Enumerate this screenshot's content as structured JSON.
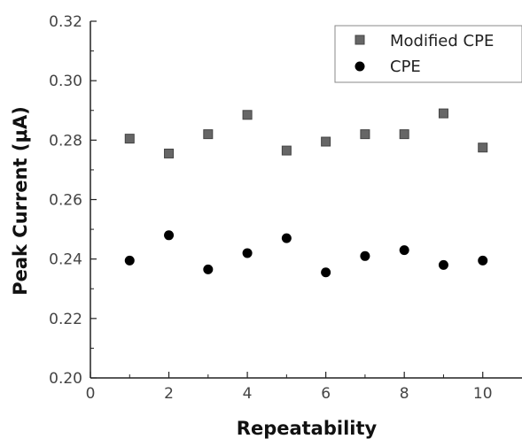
{
  "chart_data": {
    "type": "scatter",
    "xlabel": "Repeatability",
    "ylabel": "Peak Current (μA)",
    "xlim": [
      0,
      11
    ],
    "ylim": [
      0.2,
      0.32
    ],
    "x_ticks": [
      0,
      2,
      4,
      6,
      8,
      10
    ],
    "y_ticks": [
      0.2,
      0.22,
      0.24,
      0.26,
      0.28,
      0.3,
      0.32
    ],
    "x_tick_labels": [
      "0",
      "2",
      "4",
      "6",
      "8",
      "10"
    ],
    "y_tick_labels": [
      "0.20",
      "0.22",
      "0.24",
      "0.26",
      "0.28",
      "0.30",
      "0.32"
    ],
    "legend_position": "top-right",
    "series": [
      {
        "name": "Modified CPE",
        "marker": "square",
        "color": "#666666",
        "x": [
          1,
          2,
          3,
          4,
          5,
          6,
          7,
          8,
          9,
          10
        ],
        "y": [
          0.2805,
          0.2755,
          0.282,
          0.2885,
          0.2765,
          0.2795,
          0.282,
          0.282,
          0.289,
          0.2775
        ]
      },
      {
        "name": "CPE",
        "marker": "circle",
        "color": "#000000",
        "x": [
          1,
          2,
          3,
          4,
          5,
          6,
          7,
          8,
          9,
          10
        ],
        "y": [
          0.2395,
          0.248,
          0.2365,
          0.242,
          0.247,
          0.2355,
          0.241,
          0.243,
          0.238,
          0.2395
        ]
      }
    ]
  }
}
